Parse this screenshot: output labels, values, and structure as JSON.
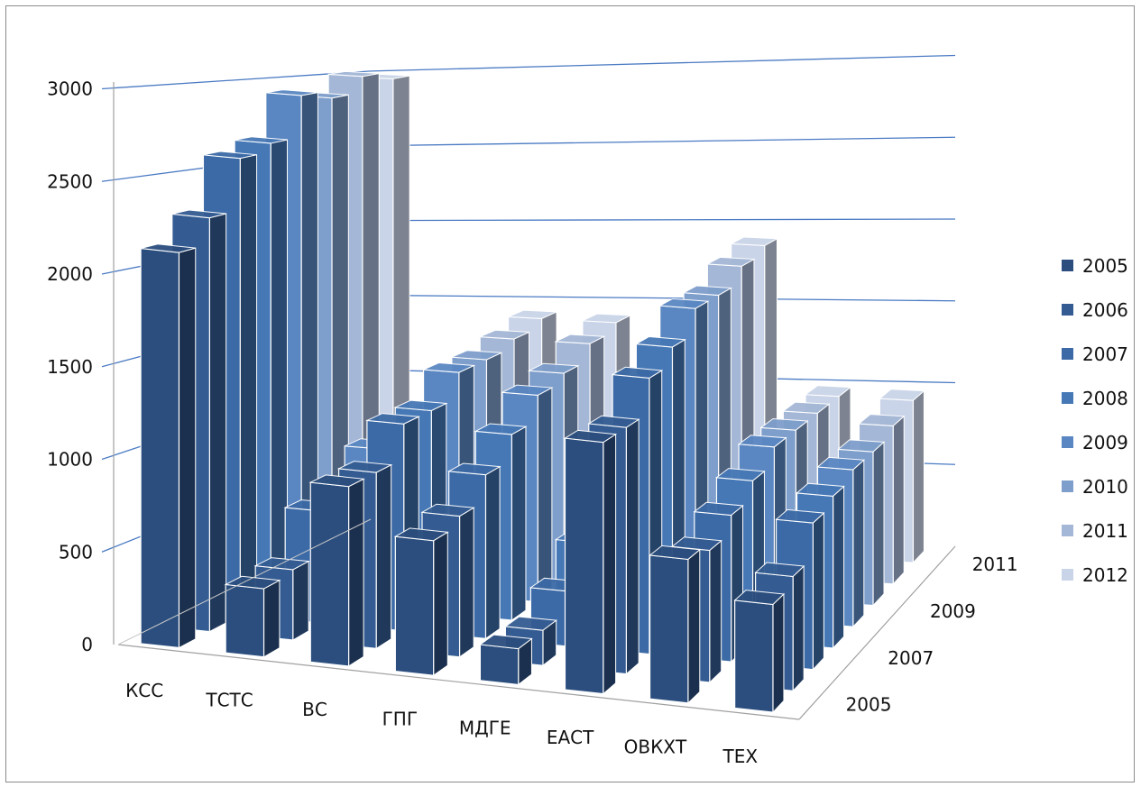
{
  "chart_data": {
    "type": "bar",
    "title": "",
    "xlabel": "",
    "ylabel": "",
    "ylim": [
      0,
      3000
    ],
    "yticks": [
      "0",
      "500",
      "1000",
      "1500",
      "2000",
      "2500",
      "3000"
    ],
    "categories": [
      "КСС",
      "ТСТС",
      "ВС",
      "ГПГ",
      "МДГЕ",
      "ЕАСТ",
      "ОВКХТ",
      "ТЕХ"
    ],
    "depth_ticks": [
      "2005",
      "2007",
      "2009",
      "2011"
    ],
    "legend_position": "right",
    "grid": true,
    "series": [
      {
        "name": "2005",
        "color": "#2b4e7e",
        "values": [
          2200,
          380,
          1000,
          750,
          200,
          1400,
          800,
          600
        ]
      },
      {
        "name": "2006",
        "color": "#345c92",
        "values": [
          2350,
          400,
          1000,
          800,
          200,
          1400,
          750,
          650
        ]
      },
      {
        "name": "2007",
        "color": "#3c6aa6",
        "values": [
          2650,
          650,
          1200,
          950,
          320,
          1600,
          850,
          850
        ]
      },
      {
        "name": "2008",
        "color": "#4678b6",
        "values": [
          2700,
          700,
          1200,
          1100,
          500,
          1700,
          950,
          900
        ]
      },
      {
        "name": "2009",
        "color": "#5a87c2",
        "values": [
          2950,
          850,
          1350,
          1250,
          750,
          1850,
          1050,
          950
        ]
      },
      {
        "name": "2010",
        "color": "#7e9ecb",
        "values": [
          2900,
          850,
          1350,
          1300,
          800,
          1850,
          1050,
          950
        ]
      },
      {
        "name": "2011",
        "color": "#a4b7d6",
        "values": [
          3000,
          900,
          1400,
          1400,
          800,
          1950,
          1050,
          1000
        ]
      },
      {
        "name": "2012",
        "color": "#c9d4e8",
        "values": [
          2950,
          850,
          1450,
          1450,
          850,
          2000,
          1050,
          1050
        ]
      }
    ]
  }
}
